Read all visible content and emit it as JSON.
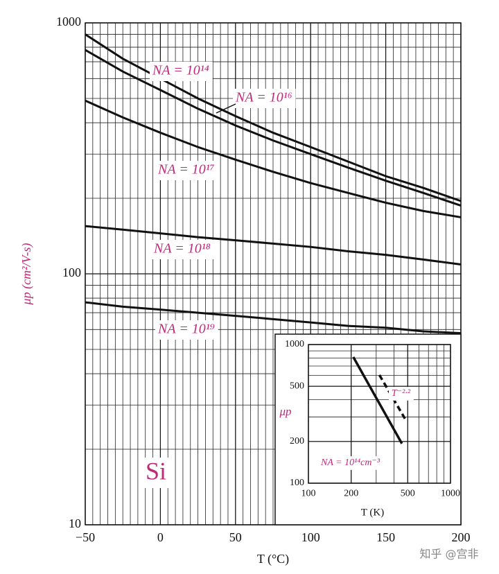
{
  "chart_data": [
    {
      "type": "line",
      "xlabel": "T (°C)",
      "ylabel": "μp (cm²/V-s)",
      "xlim": [
        -50,
        200
      ],
      "ylim": [
        10,
        1000
      ],
      "xticks": [
        {
          "value": -50,
          "label": "−50"
        },
        0,
        50,
        100,
        150,
        200
      ],
      "yticks": [
        10,
        100,
        1000
      ],
      "log_y": true,
      "grid": true,
      "annotations": [
        "Si"
      ],
      "x": [
        -50,
        -25,
        0,
        25,
        50,
        75,
        100,
        125,
        150,
        175,
        200
      ],
      "series": [
        {
          "name": "NA = 10¹⁴",
          "color": "#111111",
          "values": [
            900,
            720,
            600,
            500,
            425,
            365,
            320,
            280,
            245,
            220,
            195
          ]
        },
        {
          "name": "NA = 10¹⁶",
          "color": "#111111",
          "values": [
            780,
            640,
            540,
            455,
            390,
            340,
            300,
            265,
            235,
            210,
            187
          ]
        },
        {
          "name": "NA = 10¹⁷",
          "color": "#111111",
          "values": [
            490,
            420,
            365,
            320,
            285,
            255,
            230,
            210,
            192,
            178,
            168
          ]
        },
        {
          "name": "NA = 10¹⁸",
          "color": "#111111",
          "values": [
            155,
            150,
            145,
            140,
            136,
            132,
            128,
            123,
            119,
            114,
            109
          ]
        },
        {
          "name": "NA = 10¹⁹",
          "color": "#111111",
          "values": [
            77,
            74,
            72,
            70,
            68,
            66,
            64,
            62,
            61,
            59,
            58
          ]
        }
      ]
    },
    {
      "type": "line",
      "xlabel": "T (K)",
      "ylabel": "μp",
      "xlim": [
        100,
        1000
      ],
      "ylim": [
        100,
        1000
      ],
      "xticks": [
        100,
        200,
        500,
        1000
      ],
      "yticks": [
        100,
        200,
        500,
        1000
      ],
      "log_x": true,
      "log_y": true,
      "grid": true,
      "series": [
        {
          "name": "NA = 10¹⁴cm⁻³",
          "color": "#111111",
          "dashed": false,
          "x": [
            207,
            455
          ],
          "values": [
            813,
            193
          ]
        },
        {
          "name": "T⁻²·²",
          "color": "#111111",
          "dashed": true,
          "x": [
            316,
            478
          ],
          "values": [
            603,
            292
          ]
        }
      ]
    }
  ],
  "watermark": "知乎 @宫非"
}
